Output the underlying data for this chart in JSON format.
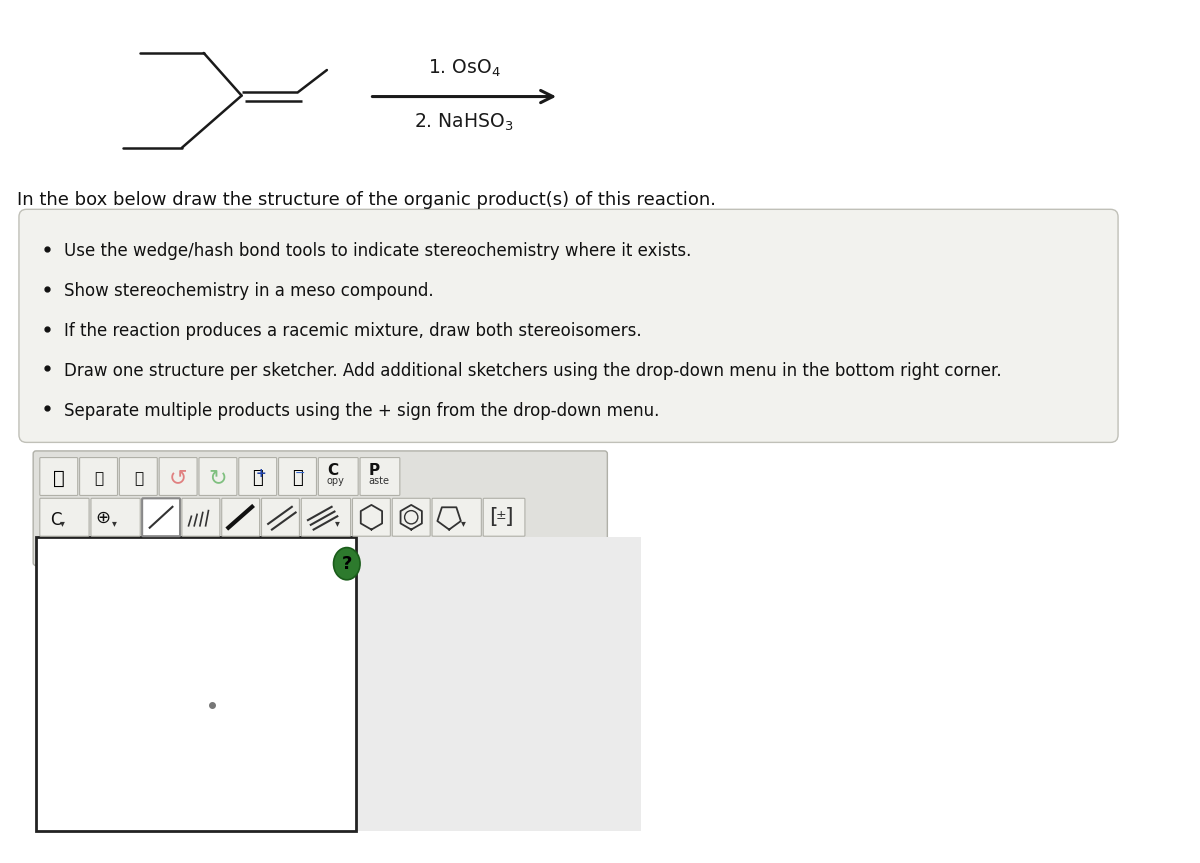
{
  "bg_color": "#ffffff",
  "molecule_color": "#1a1a1a",
  "arrow_color": "#1a1a1a",
  "reagent1": "1. OsO$_4$",
  "reagent2": "2. NaHSO$_3$",
  "instruction_text": "In the box below draw the structure of the organic product(s) of this reaction.",
  "bullet_points": [
    "Use the wedge/hash bond tools to indicate stereochemistry where it exists.",
    "Show stereochemistry in a meso compound.",
    "If the reaction produces a racemic mixture, draw both stereoisomers.",
    "Draw one structure per sketcher. Add additional sketchers using the drop-down menu in the bottom right corner.",
    "Separate multiple products using the + sign from the drop-down menu."
  ],
  "box_bg": "#f2f2ee",
  "box_border": "#c0c0b8",
  "toolbar_bg": "#e0e0dc",
  "toolbar_border": "#b0b0a8",
  "btn_bg": "#f0f0ec",
  "btn_border": "#b0b0a8",
  "sketcher_bg": "#ffffff",
  "sketcher_border": "#222222",
  "question_mark_color": "#2d7a2d",
  "question_mark_border": "#1a5c1a",
  "dot_color": "#777777"
}
